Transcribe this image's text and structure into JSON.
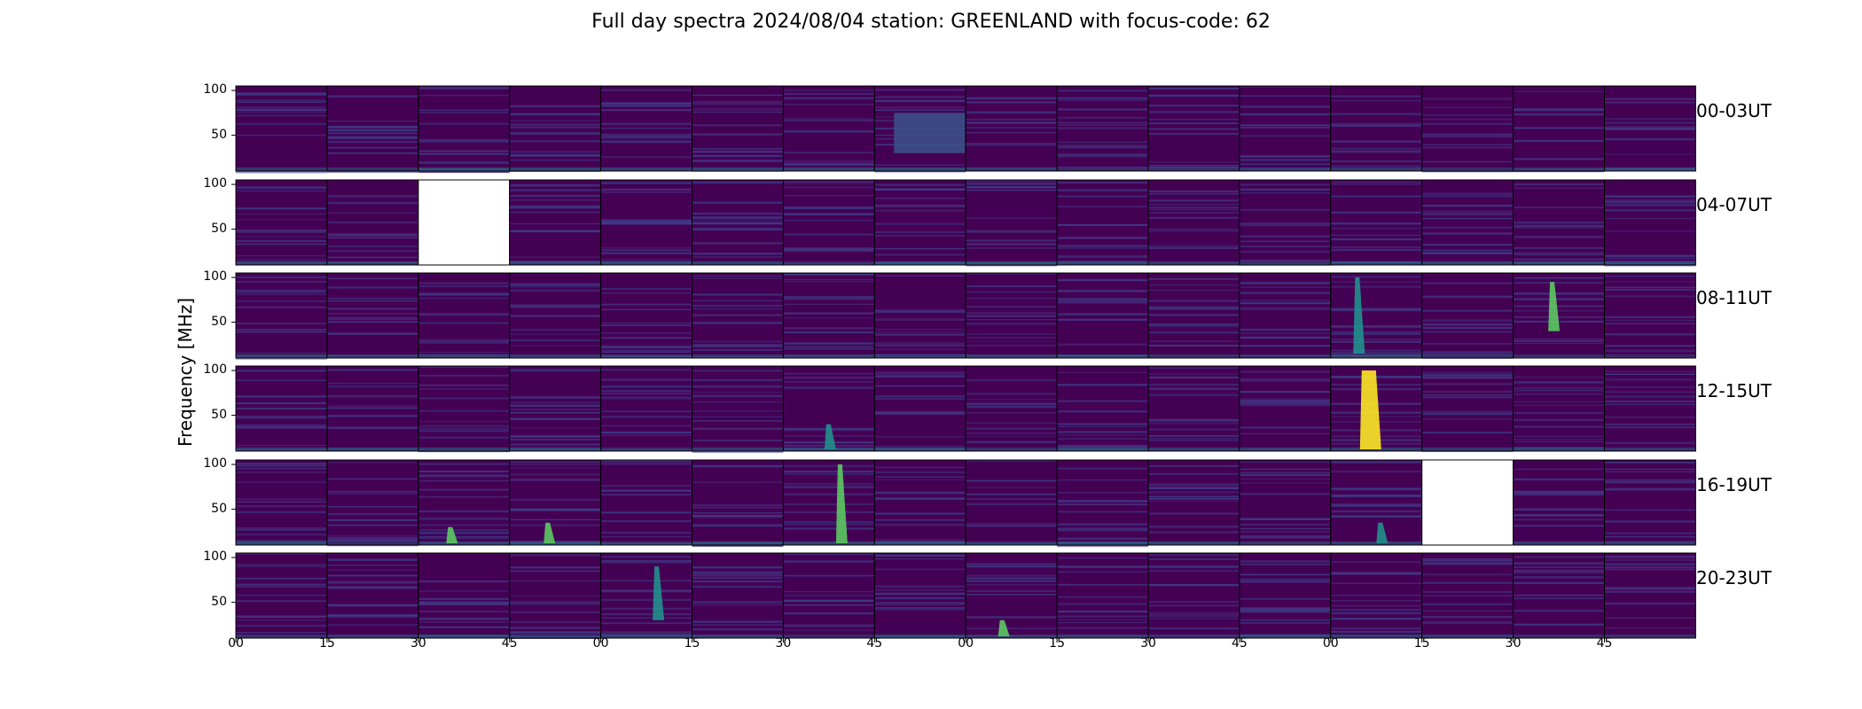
{
  "chart_data": {
    "type": "heatmap",
    "title": "Full day spectra 2024/08/04 station: GREENLAND with focus-code: 62",
    "ylabel": "Frequency [MHz]",
    "xlabel": "",
    "y_ticks": [
      100,
      50
    ],
    "ylim": [
      10,
      105
    ],
    "x_ticks": [
      "00",
      "15",
      "30",
      "45",
      "00",
      "15",
      "30",
      "45",
      "00",
      "15",
      "30",
      "45",
      "00",
      "15",
      "30",
      "45"
    ],
    "row_labels": [
      "00-03UT",
      "04-07UT",
      "08-11UT",
      "12-15UT",
      "16-19UT",
      "20-23UT"
    ],
    "panels_per_row": 16,
    "missing_panels": [
      {
        "row": 1,
        "panel": 2
      },
      {
        "row": 4,
        "panel": 13
      }
    ],
    "colormap": [
      "#440154",
      "#3b528b",
      "#21908d",
      "#5dc962",
      "#fde725"
    ],
    "bursts": [
      {
        "row": 0,
        "panel": 7,
        "kind": "band-block",
        "f_min": 30,
        "f_max": 75,
        "intensity": 0.45
      },
      {
        "row": 2,
        "panel": 12,
        "kind": "drift",
        "f_min": 15,
        "f_max": 100,
        "intensity": 0.6
      },
      {
        "row": 2,
        "panel": 14,
        "kind": "drift",
        "f_min": 40,
        "f_max": 95,
        "intensity": 0.65
      },
      {
        "row": 3,
        "panel": 6,
        "kind": "drift",
        "f_min": 12,
        "f_max": 40,
        "intensity": 0.55
      },
      {
        "row": 3,
        "panel": 12,
        "kind": "drift",
        "f_min": 12,
        "f_max": 100,
        "intensity": 1.0
      },
      {
        "row": 4,
        "panel": 2,
        "kind": "drift",
        "f_min": 12,
        "f_max": 30,
        "intensity": 0.7
      },
      {
        "row": 4,
        "panel": 3,
        "kind": "drift",
        "f_min": 12,
        "f_max": 35,
        "intensity": 0.8
      },
      {
        "row": 4,
        "panel": 6,
        "kind": "drift",
        "f_min": 12,
        "f_max": 100,
        "intensity": 0.85
      },
      {
        "row": 4,
        "panel": 12,
        "kind": "drift",
        "f_min": 12,
        "f_max": 35,
        "intensity": 0.55
      },
      {
        "row": 5,
        "panel": 4,
        "kind": "drift",
        "f_min": 30,
        "f_max": 90,
        "intensity": 0.45
      },
      {
        "row": 5,
        "panel": 8,
        "kind": "drift",
        "f_min": 12,
        "f_max": 30,
        "intensity": 0.7
      }
    ]
  }
}
